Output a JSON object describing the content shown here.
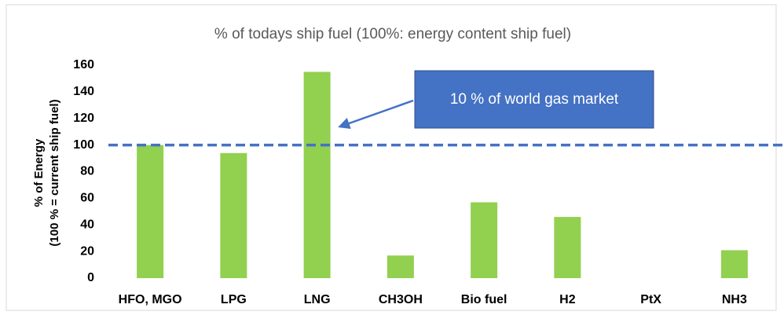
{
  "chart_data": {
    "type": "bar",
    "title": "% of todays ship fuel (100%: energy content ship fuel)",
    "ylabel": [
      "% of Energy",
      "(100 % = current ship fuel)"
    ],
    "categories": [
      "HFO, MGO",
      "LPG",
      "LNG",
      "CH3OH",
      "Bio fuel",
      "H2",
      "PtX",
      "NH3"
    ],
    "values": [
      100,
      94,
      155,
      17,
      57,
      46,
      0,
      21
    ],
    "color": "#92d050",
    "ylim": [
      0,
      160
    ],
    "yticks": [
      0,
      20,
      40,
      60,
      80,
      100,
      120,
      140,
      160
    ],
    "grid": false,
    "reference_line": {
      "value": 100,
      "color": "#4472c4"
    },
    "annotation": {
      "text": "10 % of world gas market",
      "color": "#4472c4"
    }
  }
}
